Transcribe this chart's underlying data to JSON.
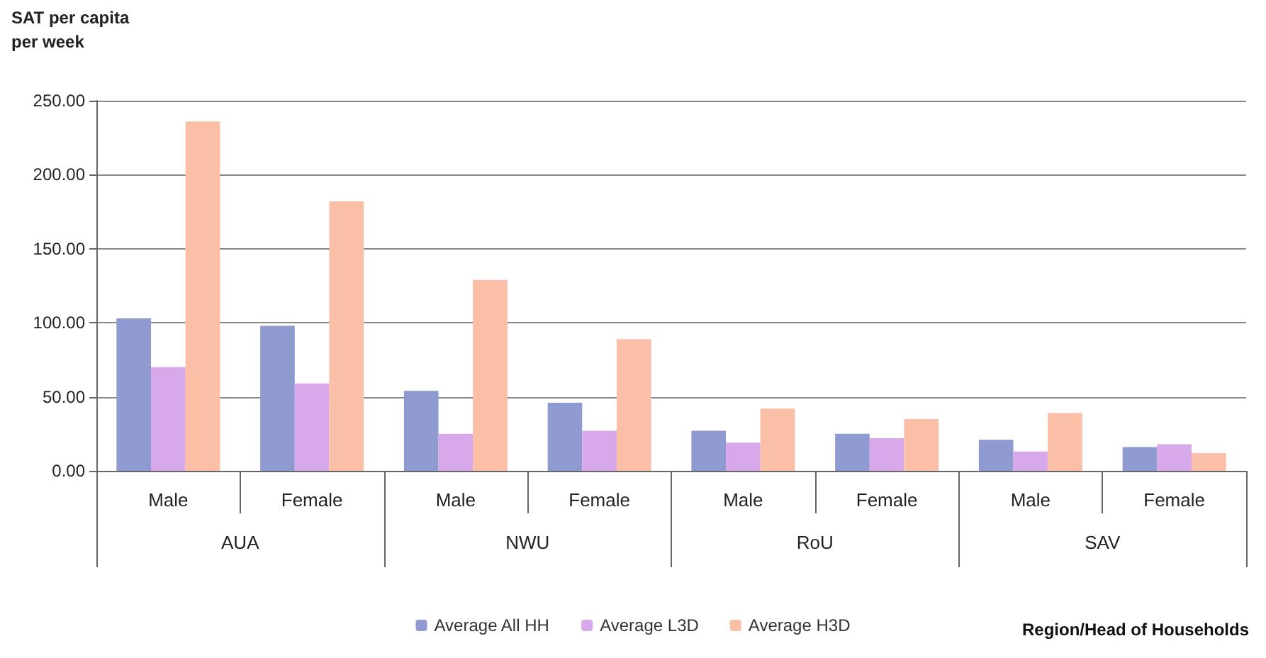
{
  "chart_data": {
    "type": "bar",
    "ylabel": "SAT per capita\nper week",
    "categories": [
      "Male",
      "Female",
      "Male",
      "Female",
      "Male",
      "Female",
      "Male",
      "Female"
    ],
    "annotations": [
      "AUA",
      "NWU",
      "RoU",
      "SAV",
      "Region/Head of Households"
    ],
    "series": [
      {
        "name": "Average All HH",
        "color": "#8e9ad0",
        "values": [
          103,
          98,
          54,
          46,
          27,
          25,
          21,
          16
        ]
      },
      {
        "name": "Average L3D",
        "color": "#d7a8ea",
        "values": [
          70,
          59,
          25,
          27,
          19,
          22,
          13,
          18
        ]
      },
      {
        "name": "Average H3D",
        "color": "#fbbfa8",
        "values": [
          236,
          182,
          129,
          89,
          42,
          35,
          39,
          12
        ]
      }
    ],
    "ylim": [
      0,
      250
    ],
    "yticks": [
      {
        "value": 0,
        "label": "0.00"
      },
      {
        "value": 50,
        "label": "50.00"
      },
      {
        "value": 100,
        "label": "100.00"
      },
      {
        "value": 150,
        "label": "150.00"
      },
      {
        "value": 200,
        "label": "200.00"
      },
      {
        "value": 250,
        "label": "250.00"
      }
    ],
    "grid": "y",
    "legend": "bottom"
  }
}
